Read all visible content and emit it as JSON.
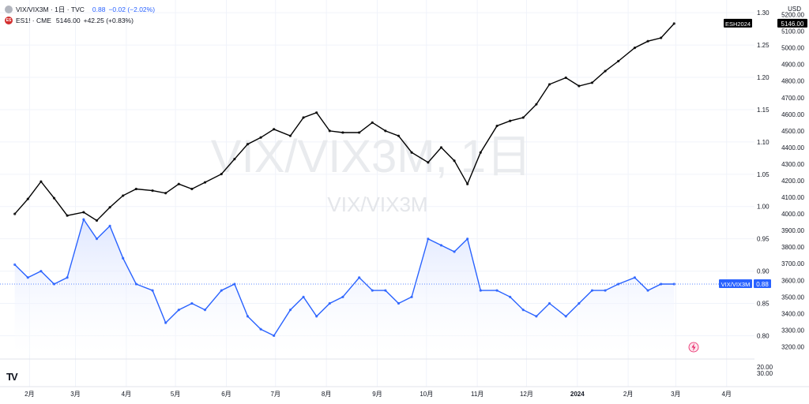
{
  "legend": {
    "main": {
      "symbol": "VIX/VIX3M · 1日 · TVC",
      "value": "0.88",
      "change": "−0.02 (−2.02%)"
    },
    "compare": {
      "icon_text": "ES",
      "symbol": "ES1! · CME",
      "value": "5146.00",
      "change": "+42.25 (+0.83%)"
    }
  },
  "watermark": {
    "title": "VIX/VIX3M, 1日",
    "subtitle": "VIX/VIX3M"
  },
  "currency_label": "USD",
  "pane2_ticks": [
    "20.00",
    "30.00"
  ],
  "colors": {
    "ratio_line": "#2962ff",
    "es_line": "#000000",
    "fill_top": "#dbe4ff",
    "grid": "#f0f3fa"
  },
  "chart_data": {
    "type": "line",
    "x": [
      "2023-01-23",
      "2023-01-31",
      "2023-02-08",
      "2023-02-16",
      "2023-02-24",
      "2023-03-06",
      "2023-03-14",
      "2023-03-22",
      "2023-03-30",
      "2023-04-07",
      "2023-04-17",
      "2023-04-25",
      "2023-05-03",
      "2023-05-11",
      "2023-05-19",
      "2023-05-29",
      "2023-06-06",
      "2023-06-14",
      "2023-06-22",
      "2023-06-30",
      "2023-07-10",
      "2023-07-18",
      "2023-07-26",
      "2023-08-03",
      "2023-08-11",
      "2023-08-21",
      "2023-08-29",
      "2023-09-06",
      "2023-09-14",
      "2023-09-22",
      "2023-10-02",
      "2023-10-10",
      "2023-10-18",
      "2023-10-26",
      "2023-11-03",
      "2023-11-13",
      "2023-11-21",
      "2023-11-29",
      "2023-12-07",
      "2023-12-15",
      "2023-12-25",
      "2024-01-02",
      "2024-01-10",
      "2024-01-18",
      "2024-01-26",
      "2024-02-05",
      "2024-02-13",
      "2024-02-21",
      "2024-02-29"
    ],
    "series": [
      {
        "name": "VIX/VIX3M",
        "axis": "left",
        "values": [
          0.91,
          0.89,
          0.9,
          0.88,
          0.89,
          0.98,
          0.95,
          0.97,
          0.92,
          0.88,
          0.87,
          0.82,
          0.84,
          0.85,
          0.84,
          0.87,
          0.88,
          0.83,
          0.81,
          0.8,
          0.84,
          0.86,
          0.83,
          0.85,
          0.86,
          0.89,
          0.87,
          0.87,
          0.85,
          0.86,
          0.95,
          0.94,
          0.93,
          0.95,
          0.87,
          0.87,
          0.86,
          0.84,
          0.83,
          0.85,
          0.83,
          0.85,
          0.87,
          0.87,
          0.88,
          0.89,
          0.87,
          0.88,
          0.88
        ]
      },
      {
        "name": "ES1!",
        "axis": "right",
        "values": [
          4000,
          4090,
          4195,
          4095,
          3990,
          4010,
          3960,
          4040,
          4110,
          4150,
          4140,
          4125,
          4180,
          4150,
          4190,
          4240,
          4330,
          4420,
          4460,
          4510,
          4470,
          4580,
          4610,
          4500,
          4490,
          4490,
          4550,
          4500,
          4470,
          4370,
          4310,
          4400,
          4320,
          4180,
          4370,
          4530,
          4560,
          4580,
          4660,
          4780,
          4820,
          4770,
          4790,
          4860,
          4920,
          5000,
          5040,
          5060,
          5146
        ]
      }
    ],
    "left_axis": {
      "ticks": [
        "1.30",
        "1.25",
        "1.20",
        "1.15",
        "1.10",
        "1.05",
        "1.00",
        "0.95",
        "0.90",
        "0.85",
        "0.80"
      ],
      "ylim": [
        0.77,
        1.31
      ]
    },
    "right_axis": {
      "ticks": [
        "5200.00",
        "5100.00",
        "5000.00",
        "4900.00",
        "4800.00",
        "4700.00",
        "4600.00",
        "4500.00",
        "4400.00",
        "4300.00",
        "4200.00",
        "4100.00",
        "4000.00",
        "3900.00",
        "3800.00",
        "3700.00",
        "3600.00",
        "3500.00",
        "3400.00",
        "3300.00",
        "3200.00"
      ],
      "ylim": [
        3150,
        5250
      ]
    },
    "x_axis": {
      "tick_labels": [
        "2月",
        "3月",
        "4月",
        "5月",
        "6月",
        "7月",
        "8月",
        "9月",
        "10月",
        "11月",
        "12月",
        "2024",
        "2月",
        "3月",
        "4月"
      ],
      "tick_dates": [
        "2023-02-01",
        "2023-03-01",
        "2023-04-01",
        "2023-05-01",
        "2023-06-01",
        "2023-07-01",
        "2023-08-01",
        "2023-09-01",
        "2023-10-01",
        "2023-11-01",
        "2023-12-01",
        "2024-01-01",
        "2024-02-01",
        "2024-03-01",
        "2024-04-01"
      ],
      "range": [
        "2023-01-14",
        "2024-04-18"
      ]
    },
    "labels": {
      "es_badge": "ESH2024",
      "es_price": "5146.00",
      "ratio_badge": "VIX/VIX3M",
      "ratio_price": "0.88"
    },
    "grid": true,
    "legend": "top-left"
  }
}
